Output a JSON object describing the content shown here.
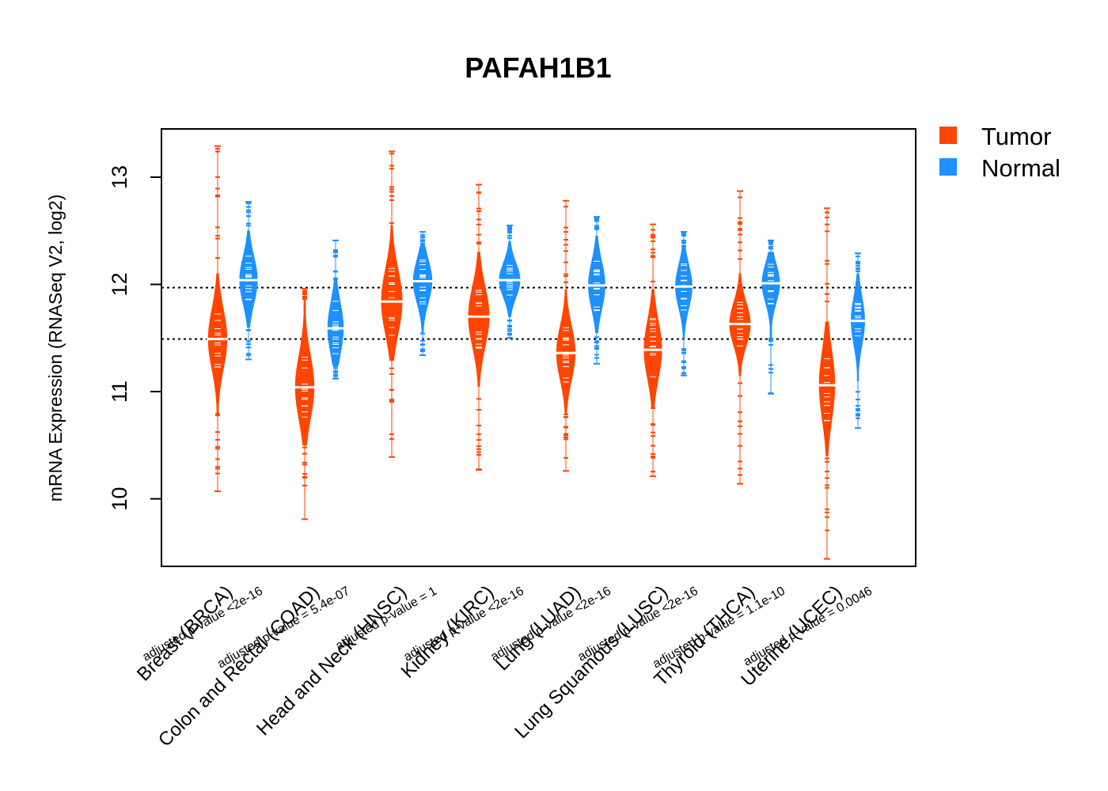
{
  "colors": {
    "tumor": "#FF4500",
    "normal": "#1E90FF",
    "axis": "#000000"
  },
  "legend": {
    "tumor_label": "Tumor",
    "normal_label": "Normal",
    "position": "top-right outside"
  },
  "chart_data": {
    "type": "violin",
    "title": "PAFAH1B1",
    "xlabel": "",
    "ylabel": "mRNA Expression (RNASeq V2, log2)",
    "ylim": [
      9.37,
      13.45
    ],
    "yticks": [
      10,
      11,
      12,
      13
    ],
    "reference_lines": [
      11.97,
      11.49
    ],
    "categories": [
      "Breast (BRCA)",
      "Colon and Rectal (COAD)",
      "Head and Neck (HNSC)",
      "Kidney (KIRC)",
      "Lung (LUAD)",
      "Lung Squamous (LUSC)",
      "Thyroid (THCA)",
      "Uterine (UCEC)"
    ],
    "pvalues": [
      "adjusted p-value <2e-16",
      "adjusted p-value = 5.4e-07",
      "adjusted p-value = 1",
      "adjusted p-value <2e-16",
      "adjusted p-value <2e-16",
      "adjusted p-value <2e-16",
      "adjusted p-value = 1.1e-10",
      "adjusted p-value = 0.0046"
    ],
    "series": [
      {
        "name": "Tumor",
        "groups": [
          {
            "median": 11.49,
            "min": 10.07,
            "max": 13.29,
            "body_low": 10.8,
            "body_high": 12.1,
            "sd": 0.28,
            "width": 0.9
          },
          {
            "median": 11.04,
            "min": 9.81,
            "max": 11.96,
            "body_low": 10.5,
            "body_high": 11.85,
            "sd": 0.3,
            "width": 0.9
          },
          {
            "median": 11.84,
            "min": 10.39,
            "max": 13.24,
            "body_low": 11.3,
            "body_high": 12.55,
            "sd": 0.3,
            "width": 1.0
          },
          {
            "median": 11.7,
            "min": 10.27,
            "max": 12.93,
            "body_low": 11.05,
            "body_high": 12.3,
            "sd": 0.28,
            "width": 1.0
          },
          {
            "median": 11.36,
            "min": 10.26,
            "max": 12.78,
            "body_low": 10.8,
            "body_high": 11.95,
            "sd": 0.25,
            "width": 0.9
          },
          {
            "median": 11.39,
            "min": 10.21,
            "max": 12.56,
            "body_low": 10.85,
            "body_high": 11.95,
            "sd": 0.27,
            "width": 0.85
          },
          {
            "median": 11.63,
            "min": 10.14,
            "max": 12.87,
            "body_low": 11.15,
            "body_high": 12.1,
            "sd": 0.2,
            "width": 1.0
          },
          {
            "median": 11.06,
            "min": 9.44,
            "max": 12.71,
            "body_low": 10.4,
            "body_high": 11.65,
            "sd": 0.32,
            "width": 0.75
          }
        ]
      },
      {
        "name": "Normal",
        "groups": [
          {
            "median": 12.04,
            "min": 11.3,
            "max": 12.77,
            "body_low": 11.6,
            "body_high": 12.5,
            "sd": 0.22,
            "width": 0.85
          },
          {
            "median": 11.59,
            "min": 11.12,
            "max": 12.41,
            "body_low": 11.25,
            "body_high": 12.05,
            "sd": 0.24,
            "width": 0.75
          },
          {
            "median": 12.03,
            "min": 11.34,
            "max": 12.49,
            "body_low": 11.55,
            "body_high": 12.35,
            "sd": 0.2,
            "width": 0.9
          },
          {
            "median": 12.04,
            "min": 11.5,
            "max": 12.55,
            "body_low": 11.7,
            "body_high": 12.4,
            "sd": 0.16,
            "width": 1.0
          },
          {
            "median": 11.99,
            "min": 11.26,
            "max": 12.63,
            "body_low": 11.55,
            "body_high": 12.45,
            "sd": 0.22,
            "width": 0.8
          },
          {
            "median": 11.98,
            "min": 11.15,
            "max": 12.49,
            "body_low": 11.5,
            "body_high": 12.35,
            "sd": 0.2,
            "width": 0.8
          },
          {
            "median": 12.01,
            "min": 10.98,
            "max": 12.41,
            "body_low": 11.5,
            "body_high": 12.3,
            "sd": 0.18,
            "width": 0.85
          },
          {
            "median": 11.66,
            "min": 10.66,
            "max": 12.29,
            "body_low": 11.1,
            "body_high": 12.1,
            "sd": 0.22,
            "width": 0.65
          }
        ]
      }
    ]
  }
}
